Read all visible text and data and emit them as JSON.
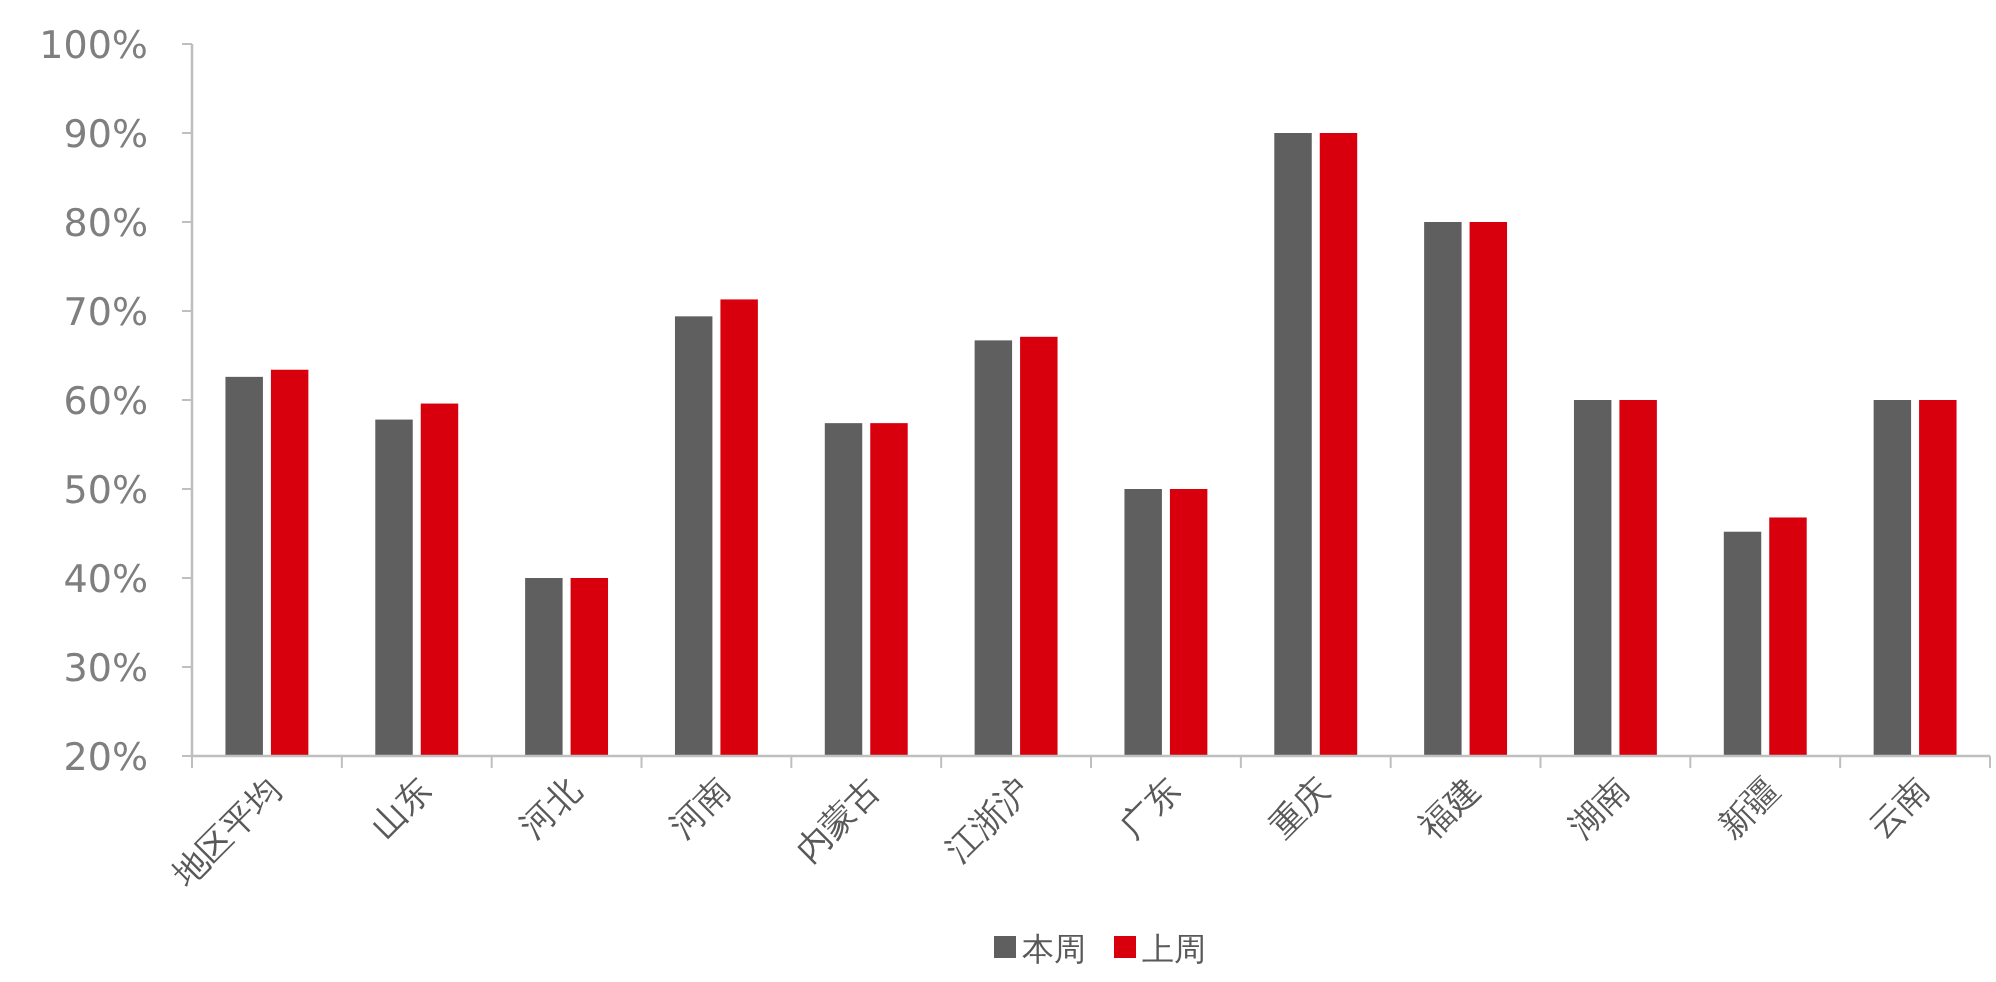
{
  "chart_data": {
    "type": "bar",
    "categories": [
      "地区平均",
      "山东",
      "河北",
      "河南",
      "内蒙古",
      "江浙沪",
      "广东",
      "重庆",
      "福建",
      "湖南",
      "新疆",
      "云南"
    ],
    "series": [
      {
        "name": "本周",
        "color": "#5f5f5f",
        "values": [
          62.6,
          57.8,
          40,
          69.4,
          57.4,
          66.7,
          50,
          90,
          80,
          60,
          45.2,
          60
        ]
      },
      {
        "name": "上周",
        "color": "#d9000d",
        "values": [
          63.4,
          59.6,
          40,
          71.3,
          57.4,
          67.1,
          50,
          90,
          80,
          60,
          46.8,
          60
        ]
      }
    ],
    "ylim": [
      20,
      100
    ],
    "yticks": [
      {
        "value": 20,
        "label": "20%"
      },
      {
        "value": 30,
        "label": "30%"
      },
      {
        "value": 40,
        "label": "40%"
      },
      {
        "value": 50,
        "label": "50%"
      },
      {
        "value": 60,
        "label": "60%"
      },
      {
        "value": 70,
        "label": "70%"
      },
      {
        "value": 80,
        "label": "80%"
      },
      {
        "value": 90,
        "label": "90%"
      },
      {
        "value": 100,
        "label": "100%"
      }
    ],
    "grid": false,
    "legend": "bottom"
  }
}
